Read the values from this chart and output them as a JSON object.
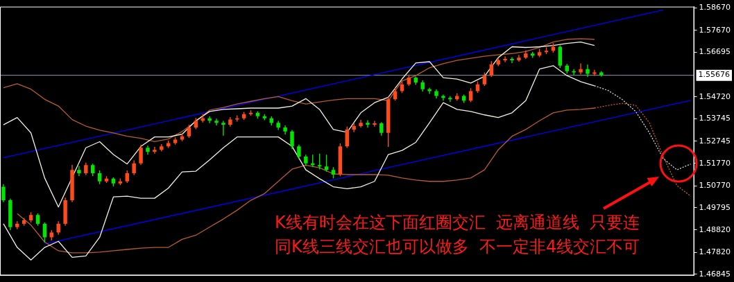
{
  "chart_data": {
    "type": "candlestick",
    "categories": [
      null,
      null,
      null,
      null,
      null,
      null,
      null,
      null,
      null,
      null,
      null,
      null,
      null,
      null,
      null,
      null,
      null,
      null,
      null,
      null,
      null,
      null,
      null,
      null,
      null,
      null,
      null,
      null,
      null,
      null,
      null,
      null,
      null,
      null,
      null,
      null,
      null,
      null,
      null,
      null,
      null,
      null,
      null,
      null,
      null,
      null,
      null,
      null,
      null,
      null,
      null,
      null,
      null,
      null,
      null,
      null,
      null,
      null,
      null,
      null,
      null,
      null,
      null,
      null,
      null,
      null,
      null,
      null,
      null,
      null,
      null,
      null,
      null,
      null,
      null,
      null,
      null,
      null,
      null,
      null,
      null,
      null,
      null,
      null,
      null,
      null,
      null,
      null,
      null,
      null,
      null,
      null,
      null,
      null,
      null,
      null,
      null,
      null,
      null,
      null,
      null
    ],
    "ohlc": [
      [
        1.5073,
        1.5085,
        1.5005,
        1.5013
      ],
      [
        1.5013,
        1.502,
        1.488,
        1.4894
      ],
      [
        1.4894,
        1.492,
        1.4885,
        1.4909
      ],
      [
        1.4909,
        1.4935,
        1.49,
        1.4924
      ],
      [
        1.4924,
        1.496,
        1.4915,
        1.4948
      ],
      [
        1.4948,
        1.4955,
        1.49,
        1.4909
      ],
      [
        1.4909,
        1.4915,
        1.4825,
        1.4849
      ],
      [
        1.4849,
        1.488,
        1.4835,
        1.487
      ],
      [
        1.487,
        1.492,
        1.486,
        1.4909
      ],
      [
        1.4909,
        1.5025,
        1.49,
        1.5013
      ],
      [
        1.5013,
        1.517,
        1.5005,
        1.5148
      ],
      [
        1.5148,
        1.5165,
        1.512,
        1.5133
      ],
      [
        1.5133,
        1.518,
        1.5125,
        1.5169
      ],
      [
        1.5169,
        1.5175,
        1.512,
        1.5133
      ],
      [
        1.5133,
        1.5145,
        1.5085,
        1.5097
      ],
      [
        1.5097,
        1.512,
        1.509,
        1.5109
      ],
      [
        1.5109,
        1.5115,
        1.5075,
        1.5088
      ],
      [
        1.5088,
        1.511,
        1.508,
        1.5097
      ],
      [
        1.5097,
        1.5145,
        1.509,
        1.5133
      ],
      [
        1.5133,
        1.519,
        1.5125,
        1.5177
      ],
      [
        1.5177,
        1.526,
        1.517,
        1.5246
      ],
      [
        1.5246,
        1.5255,
        1.5215,
        1.5228
      ],
      [
        1.5228,
        1.525,
        1.522,
        1.5237
      ],
      [
        1.5237,
        1.5262,
        1.523,
        1.5252
      ],
      [
        1.5252,
        1.5278,
        1.5245,
        1.5267
      ],
      [
        1.5267,
        1.5292,
        1.526,
        1.5282
      ],
      [
        1.5282,
        1.531,
        1.5275,
        1.5297
      ],
      [
        1.5297,
        1.5348,
        1.529,
        1.5336
      ],
      [
        1.5336,
        1.5378,
        1.5328,
        1.5366
      ],
      [
        1.5366,
        1.5395,
        1.5358,
        1.5377
      ],
      [
        1.5377,
        1.5385,
        1.5355,
        1.5366
      ],
      [
        1.5366,
        1.5375,
        1.5345,
        1.5357
      ],
      [
        1.5357,
        1.5365,
        1.53,
        1.5348
      ],
      [
        1.5348,
        1.5382,
        1.534,
        1.5371
      ],
      [
        1.5371,
        1.539,
        1.5362,
        1.5377
      ],
      [
        1.5377,
        1.5405,
        1.537,
        1.5395
      ],
      [
        1.5395,
        1.5412,
        1.5388,
        1.5401
      ],
      [
        1.5401,
        1.5408,
        1.5375,
        1.5386
      ],
      [
        1.5386,
        1.5395,
        1.5368,
        1.5377
      ],
      [
        1.5377,
        1.5385,
        1.5345,
        1.5357
      ],
      [
        1.5357,
        1.5365,
        1.5325,
        1.5336
      ],
      [
        1.5336,
        1.5345,
        1.5305,
        1.5318
      ],
      [
        1.5318,
        1.5325,
        1.524,
        1.5252
      ],
      [
        1.5252,
        1.526,
        1.5195,
        1.5207
      ],
      [
        1.5207,
        1.5215,
        1.5165,
        1.5177
      ],
      [
        1.5177,
        1.5215,
        1.516,
        1.5169
      ],
      [
        1.5169,
        1.522,
        1.515,
        1.5163
      ],
      [
        1.5163,
        1.5215,
        1.514,
        1.5148
      ],
      [
        1.5148,
        1.516,
        1.511,
        1.5127
      ],
      [
        1.5127,
        1.5265,
        1.512,
        1.5252
      ],
      [
        1.5252,
        1.534,
        1.5245,
        1.5327
      ],
      [
        1.5327,
        1.5355,
        1.5315,
        1.5342
      ],
      [
        1.5342,
        1.537,
        1.5335,
        1.5357
      ],
      [
        1.5357,
        1.5368,
        1.5335,
        1.5348
      ],
      [
        1.5348,
        1.5365,
        1.534,
        1.5354
      ],
      [
        1.5354,
        1.536,
        1.53,
        1.5312
      ],
      [
        1.5312,
        1.5472,
        1.525,
        1.5461
      ],
      [
        1.5461,
        1.551,
        1.5455,
        1.5497
      ],
      [
        1.5497,
        1.554,
        1.549,
        1.5527
      ],
      [
        1.5527,
        1.557,
        1.552,
        1.5557
      ],
      [
        1.5557,
        1.5562,
        1.5525,
        1.5536
      ],
      [
        1.5536,
        1.5545,
        1.5495,
        1.5506
      ],
      [
        1.5506,
        1.5512,
        1.5485,
        1.5497
      ],
      [
        1.5497,
        1.5505,
        1.5465,
        1.5476
      ],
      [
        1.5476,
        1.5482,
        1.5455,
        1.5467
      ],
      [
        1.5467,
        1.5475,
        1.545,
        1.5461
      ],
      [
        1.5461,
        1.5488,
        1.5455,
        1.5476
      ],
      [
        1.5476,
        1.5482,
        1.5445,
        1.5455
      ],
      [
        1.5455,
        1.551,
        1.5448,
        1.5497
      ],
      [
        1.5497,
        1.554,
        1.549,
        1.5527
      ],
      [
        1.5527,
        1.558,
        1.552,
        1.5566
      ],
      [
        1.5566,
        1.563,
        1.556,
        1.5616
      ],
      [
        1.5616,
        1.5645,
        1.5608,
        1.5634
      ],
      [
        1.5634,
        1.5652,
        1.5626,
        1.564
      ],
      [
        1.564,
        1.5648,
        1.5622,
        1.5634
      ],
      [
        1.5634,
        1.5658,
        1.5628,
        1.5646
      ],
      [
        1.5646,
        1.5678,
        1.564,
        1.5664
      ],
      [
        1.5664,
        1.5672,
        1.5645,
        1.5655
      ],
      [
        1.5655,
        1.5685,
        1.5648,
        1.567
      ],
      [
        1.567,
        1.5692,
        1.5662,
        1.5676
      ],
      [
        1.5676,
        1.571,
        1.5668,
        1.5694
      ],
      [
        1.5694,
        1.57,
        1.56,
        1.561
      ],
      [
        1.561,
        1.5618,
        1.5575,
        1.5586
      ],
      [
        1.5586,
        1.5595,
        1.5568,
        1.558
      ],
      [
        1.558,
        1.562,
        1.5572,
        1.5595
      ],
      [
        1.5595,
        1.5615,
        1.556,
        1.5574
      ],
      [
        1.5574,
        1.5592,
        1.5565,
        1.558
      ],
      [
        1.558,
        1.5586,
        1.5562,
        1.5568
      ],
      null,
      null,
      null,
      null,
      null,
      null,
      null,
      null,
      null,
      null,
      null,
      null,
      null
    ],
    "colors": [
      "#00e600",
      "#00e600",
      "#ff4a1a",
      "#ff4a1a",
      "#ff4a1a",
      "#00e600",
      "#00e600",
      "#ff4a1a",
      "#ff4a1a",
      "#ff4a1a",
      "#ff4a1a",
      "#00e600",
      "#ff4a1a",
      "#00e600",
      "#00e600",
      "#ff4a1a",
      "#00e600",
      "#ff4a1a",
      "#ff4a1a",
      "#ff4a1a",
      "#ff4a1a",
      "#00e600",
      "#ff4a1a",
      "#ff4a1a",
      "#ff4a1a",
      "#ff4a1a",
      "#ff4a1a",
      "#ff4a1a",
      "#ff4a1a",
      "#ff4a1a",
      "#00e600",
      "#00e600",
      "#00e600",
      "#ff4a1a",
      "#ff4a1a",
      "#ff4a1a",
      "#ff4a1a",
      "#00e600",
      "#00e600",
      "#00e600",
      "#00e600",
      "#00e600",
      "#00e600",
      "#00e600",
      "#00e600",
      "#00e600",
      "#00e600",
      "#00e600",
      "#00e600",
      "#ff4a1a",
      "#ff4a1a",
      "#ff4a1a",
      "#ff4a1a",
      "#00e600",
      "#ff4a1a",
      "#00e600",
      "#ff4a1a",
      "#ff4a1a",
      "#ff4a1a",
      "#ff4a1a",
      "#00e600",
      "#00e600",
      "#00e600",
      "#00e600",
      "#00e600",
      "#00e600",
      "#ff4a1a",
      "#00e600",
      "#ff4a1a",
      "#ff4a1a",
      "#ff4a1a",
      "#ff4a1a",
      "#ff4a1a",
      "#ff4a1a",
      "#00e600",
      "#ff4a1a",
      "#ff4a1a",
      "#00e600",
      "#ff4a1a",
      "#ff4a1a",
      "#ff4a1a",
      "#00e600",
      "#00e600",
      "#00e600",
      "#ff4a1a",
      "#00e600",
      "#ff4a1a",
      "#00e600",
      null,
      null,
      null,
      null,
      null,
      null,
      null,
      null,
      null,
      null,
      null,
      null,
      null
    ],
    "series": [
      {
        "type": "line",
        "color": "#f4f0e0",
        "values": [
          1.5348,
          null,
          1.538,
          null,
          1.5312,
          null,
          1.5112,
          null,
          1.4983,
          null,
          null,
          null,
          1.5246,
          null,
          1.5273,
          null,
          1.5216,
          null,
          1.5174,
          null,
          1.5252,
          null,
          1.5294,
          null,
          1.5294,
          null,
          1.5306,
          null,
          1.5366,
          null,
          1.5407,
          null,
          1.5416,
          null,
          1.5419,
          null,
          1.5422,
          null,
          1.5422,
          null,
          1.5422,
          null,
          1.5431,
          null,
          1.5464,
          null,
          1.5416,
          null,
          1.5327,
          null,
          1.5315,
          null,
          1.5401,
          null,
          1.5446,
          null,
          1.547,
          null,
          1.5551,
          null,
          1.5622,
          null,
          1.5628,
          null,
          1.5557,
          null,
          1.5551,
          null,
          1.5533,
          null,
          1.5563,
          null,
          1.5646,
          null,
          1.5694,
          null,
          1.5691,
          null,
          1.5694,
          null,
          1.57,
          null,
          1.5709,
          null,
          1.5715,
          null,
          1.57,
          null,
          null,
          null,
          null,
          null,
          null,
          null,
          null,
          null,
          null,
          null,
          null,
          null,
          null
        ]
      },
      {
        "type": "line",
        "color": "#f4f0e0",
        "values": [
          1.4909,
          null,
          1.4804,
          null,
          1.4748,
          null,
          1.4804,
          null,
          1.4831,
          null,
          1.476,
          null,
          1.4766,
          null,
          1.4849,
          null,
          1.5028,
          null,
          1.5031,
          null,
          1.5022,
          null,
          1.5022,
          null,
          1.5067,
          null,
          1.5139,
          null,
          1.5142,
          null,
          1.5192,
          null,
          1.5246,
          null,
          1.5294,
          null,
          1.5294,
          null,
          1.5294,
          null,
          1.5294,
          null,
          1.5252,
          null,
          1.5148,
          null,
          1.5109,
          null,
          1.5073,
          null,
          1.5064,
          null,
          1.5073,
          null,
          1.5097,
          null,
          1.5216,
          null,
          1.5234,
          null,
          1.527,
          null,
          1.5357,
          null,
          1.5446,
          null,
          1.5416,
          null,
          1.5407,
          null,
          1.5392,
          null,
          1.538,
          null,
          1.5401,
          null,
          1.5455,
          null,
          1.5595,
          null,
          1.561,
          null,
          1.5566,
          null,
          1.5539,
          null,
          1.5521,
          null,
          null,
          null,
          null,
          null,
          null,
          null,
          null,
          null,
          null,
          null,
          null,
          null,
          null
        ]
      },
      {
        "type": "line",
        "color": "#b85c2c",
        "values": [
          1.5512,
          null,
          1.553,
          null,
          1.5506,
          null,
          1.5461,
          null,
          1.5431,
          null,
          1.5371,
          null,
          1.5342,
          null,
          1.5324,
          null,
          1.5312,
          null,
          1.5297,
          null,
          1.5288,
          null,
          1.5273,
          null,
          1.5285,
          null,
          1.5318,
          null,
          1.5363,
          null,
          1.5413,
          null,
          1.5425,
          null,
          1.544,
          null,
          1.5452,
          null,
          1.5464,
          null,
          1.5473,
          null,
          1.5455,
          null,
          1.544,
          null,
          1.5449,
          null,
          1.5458,
          null,
          1.5464,
          null,
          1.5464,
          null,
          1.5464,
          null,
          1.5455,
          null,
          1.5542,
          null,
          1.5566,
          null,
          1.5601,
          null,
          1.5619,
          null,
          1.5634,
          null,
          1.5643,
          null,
          1.5652,
          null,
          1.5658,
          null,
          1.5664,
          null,
          1.5673,
          null,
          1.5691,
          null,
          1.5715,
          null,
          1.5727,
          null,
          1.573,
          null,
          1.5727,
          null,
          null,
          null,
          null,
          null,
          null,
          null,
          null,
          null,
          null,
          null,
          null,
          null,
          null
        ]
      },
      {
        "type": "line",
        "color": "#b85c2c",
        "values": [
          null,
          null,
          1.4954,
          null,
          1.4903,
          null,
          1.4828,
          null,
          1.4789,
          null,
          1.478,
          null,
          1.478,
          null,
          1.4783,
          null,
          1.4789,
          null,
          1.4795,
          null,
          1.4801,
          null,
          1.4804,
          null,
          1.4804,
          null,
          1.484,
          null,
          1.4858,
          null,
          1.4894,
          null,
          1.493,
          null,
          1.4969,
          null,
          1.5013,
          null,
          1.5043,
          null,
          1.5097,
          null,
          1.5151,
          null,
          1.5169,
          null,
          1.5157,
          null,
          1.513,
          null,
          1.5127,
          null,
          1.5127,
          null,
          1.5127,
          null,
          1.5124,
          null,
          1.5112,
          null,
          1.5103,
          null,
          1.5097,
          null,
          1.5097,
          null,
          1.5103,
          null,
          1.5112,
          null,
          1.5148,
          null,
          1.5237,
          null,
          1.5297,
          null,
          1.5327,
          null,
          1.5366,
          null,
          1.5401,
          null,
          1.5413,
          null,
          1.5416,
          null,
          1.5422,
          null,
          null,
          null,
          null,
          null,
          null,
          null,
          null,
          null,
          null,
          null,
          null,
          null,
          null
        ]
      },
      {
        "type": "line",
        "color": "#d8d8d8",
        "line_style": "dotted",
        "values": [
          null,
          null,
          null,
          null,
          null,
          null,
          null,
          null,
          null,
          null,
          null,
          null,
          null,
          null,
          null,
          null,
          null,
          null,
          null,
          null,
          null,
          null,
          null,
          null,
          null,
          null,
          null,
          null,
          null,
          null,
          null,
          null,
          null,
          null,
          null,
          null,
          null,
          null,
          null,
          null,
          null,
          null,
          null,
          null,
          null,
          null,
          null,
          null,
          null,
          null,
          null,
          null,
          null,
          null,
          null,
          null,
          null,
          null,
          null,
          null,
          null,
          null,
          null,
          null,
          null,
          null,
          null,
          null,
          null,
          null,
          null,
          null,
          null,
          null,
          null,
          null,
          null,
          null,
          null,
          null,
          null,
          null,
          null,
          null,
          null,
          null,
          1.5521,
          null,
          1.55,
          null,
          1.5461,
          null,
          1.5407,
          null,
          1.5312,
          null,
          1.5198,
          null,
          1.5148,
          null,
          1.5174
        ]
      },
      {
        "type": "line",
        "color": "#d06010",
        "line_style": "dotted",
        "values": [
          null,
          null,
          null,
          null,
          null,
          null,
          null,
          null,
          null,
          null,
          null,
          null,
          null,
          null,
          null,
          null,
          null,
          null,
          null,
          null,
          null,
          null,
          null,
          null,
          null,
          null,
          null,
          null,
          null,
          null,
          null,
          null,
          null,
          null,
          null,
          null,
          null,
          null,
          null,
          null,
          null,
          null,
          null,
          null,
          null,
          null,
          null,
          null,
          null,
          null,
          null,
          null,
          null,
          null,
          null,
          null,
          null,
          null,
          null,
          null,
          null,
          null,
          null,
          null,
          null,
          null,
          null,
          null,
          null,
          null,
          null,
          null,
          null,
          null,
          null,
          null,
          null,
          null,
          null,
          null,
          null,
          null,
          null,
          null,
          null,
          null,
          1.5422,
          null,
          1.5434,
          null,
          1.5443,
          null,
          1.5434,
          null,
          1.5357,
          null,
          1.5207,
          null,
          1.5079,
          null,
          1.5031
        ]
      },
      {
        "type": "line",
        "color": "#0000ff",
        "values": [
          1.5202,
          null,
          null,
          null,
          null,
          null,
          null,
          null,
          null,
          null,
          null,
          null,
          null,
          null,
          null,
          null,
          null,
          null,
          null,
          null,
          null,
          null,
          null,
          null,
          null,
          null,
          null,
          null,
          null,
          null,
          null,
          null,
          null,
          null,
          null,
          null,
          null,
          null,
          null,
          null,
          null,
          null,
          null,
          null,
          null,
          null,
          null,
          null,
          null,
          null,
          null,
          null,
          null,
          null,
          null,
          null,
          null,
          null,
          null,
          null,
          null,
          null,
          null,
          null,
          null,
          null,
          null,
          null,
          null,
          null,
          null,
          null,
          null,
          null,
          null,
          null,
          null,
          null,
          null,
          null,
          null,
          null,
          null,
          null,
          null,
          null,
          null,
          null,
          null,
          null,
          null,
          null,
          null,
          null,
          null,
          null,
          1.5857,
          null,
          null,
          null,
          null
        ]
      },
      {
        "type": "line",
        "color": "#0000ff",
        "values": [
          null,
          null,
          null,
          null,
          null,
          null,
          1.4819,
          null,
          null,
          null,
          null,
          null,
          null,
          null,
          null,
          null,
          null,
          null,
          null,
          null,
          null,
          null,
          null,
          null,
          null,
          null,
          null,
          null,
          null,
          null,
          null,
          null,
          null,
          null,
          null,
          null,
          null,
          null,
          null,
          null,
          null,
          null,
          null,
          null,
          null,
          null,
          null,
          null,
          null,
          null,
          null,
          null,
          null,
          null,
          null,
          null,
          null,
          null,
          null,
          null,
          null,
          null,
          null,
          null,
          null,
          null,
          null,
          null,
          null,
          null,
          null,
          null,
          null,
          null,
          null,
          null,
          null,
          null,
          null,
          null,
          null,
          null,
          null,
          null,
          null,
          null,
          null,
          null,
          null,
          null,
          null,
          null,
          null,
          null,
          null,
          null,
          null,
          null,
          null,
          null,
          1.5456
        ]
      }
    ],
    "ylim": [
      1.468,
      1.5872
    ],
    "yticks": [
      {
        "value": 1.5867,
        "label": "1.58670"
      },
      {
        "value": 1.5767,
        "label": "1.57670"
      },
      1.56695,
      {
        "value": 1.5472,
        "label": "1.54720"
      },
      1.53745,
      1.52745,
      {
        "value": 1.5177,
        "label": "1.51770"
      },
      {
        "value": 1.5077,
        "label": "1.50770"
      },
      1.49795,
      {
        "value": 1.4882,
        "label": "1.48820"
      },
      {
        "value": 1.4782,
        "label": "1.47820"
      },
      1.46845
    ],
    "ref_lines": [
      {
        "axis": "y",
        "value": 1.55676,
        "label": "1.55676",
        "color": "#8a9aaa"
      }
    ],
    "tick_labels": "y",
    "grid": false,
    "legend": false,
    "annotations": [
      "K线有时会在这下面红圈交汇  远离通道线  只要连",
      "同K线三线交汇也可以做多  不一定非4线交汇不可"
    ]
  }
}
